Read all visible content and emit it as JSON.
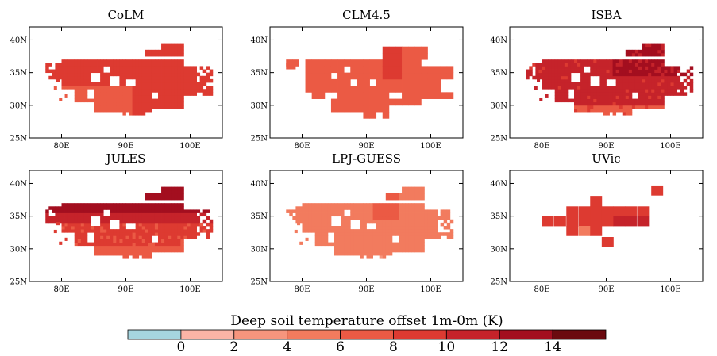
{
  "figure": {
    "panels": [
      {
        "id": "colm",
        "title": "CoLM",
        "cells": [
          [
            -1,
            1,
            -1,
            -1,
            -1,
            -1,
            -1,
            -1,
            -1,
            -1,
            -1,
            -1,
            -1,
            -1,
            -1,
            -1,
            -1,
            -1,
            -1,
            -1,
            -1,
            -1,
            -1,
            -1,
            -1,
            -1,
            -1,
            -1,
            -1,
            -1,
            -1,
            -1,
            -1,
            -1,
            -1,
            -1,
            -1,
            -1,
            -1,
            -1,
            -1,
            -1,
            -1,
            -1,
            -1,
            -1,
            -1,
            -1,
            -1,
            -1
          ],
          [
            -1,
            1,
            1,
            -1,
            -1,
            -1,
            -1,
            -1,
            -1,
            -1,
            -1,
            -1,
            -1,
            -1,
            -1,
            -1,
            -1,
            -1,
            -1,
            -1,
            -1,
            -1,
            -1,
            -1,
            -1,
            -1,
            -1,
            -1,
            -1,
            -1,
            -1,
            -1,
            -1,
            -1,
            -1,
            -1,
            -1,
            -1,
            -1,
            -1,
            -1,
            -1,
            -1,
            -1,
            -1,
            -1,
            -1,
            -1,
            -1,
            -1
          ],
          [
            -1,
            1,
            1,
            1,
            -1,
            -1,
            -1,
            -1,
            -1,
            -1,
            -1,
            -1,
            -1,
            -1,
            -1,
            -1,
            -1,
            -1,
            -1,
            -1,
            -1,
            -1,
            -1,
            -1,
            -1,
            -1,
            -1,
            -1,
            -1,
            -1,
            -1,
            -1,
            -1,
            -1,
            -1,
            -1,
            -1,
            -1,
            -1,
            -1,
            -1,
            -1,
            -1,
            -1,
            -1,
            -1,
            -1,
            -1,
            -1,
            -1
          ]
        ]
      },
      {
        "id": "clm45",
        "title": "CLM4.5",
        "cells": []
      },
      {
        "id": "isba",
        "title": "ISBA",
        "cells": []
      },
      {
        "id": "jules",
        "title": "JULES",
        "cells": []
      },
      {
        "id": "lpjguess",
        "title": "LPJ-GUESS",
        "cells": []
      },
      {
        "id": "uvic",
        "title": "UVic",
        "cells": []
      }
    ],
    "map_axes": {
      "lon_range": [
        75,
        105
      ],
      "lat_range": [
        25,
        42
      ],
      "x_ticks": [
        "80E",
        "90E",
        "100E"
      ],
      "y_ticks": [
        "25N",
        "30N",
        "35N",
        "40N"
      ],
      "x_tick_values": [
        80,
        90,
        100
      ],
      "y_tick_values": [
        25,
        30,
        35,
        40
      ]
    },
    "colorbar": {
      "title": "Deep soil temperature offset    1m-0m (K)",
      "tick_labels": [
        "0",
        "2",
        "4",
        "6",
        "8",
        "10",
        "12",
        "14"
      ],
      "bin_edges": [
        -2,
        0,
        2,
        4,
        6,
        8,
        10,
        12,
        14,
        16
      ],
      "colors": [
        "#a6d5df",
        "#fbb4a6",
        "#f7957d",
        "#f27b5e",
        "#eb5a44",
        "#dd3a31",
        "#c5232a",
        "#a30e1f",
        "#6b0a0f"
      ]
    }
  }
}
